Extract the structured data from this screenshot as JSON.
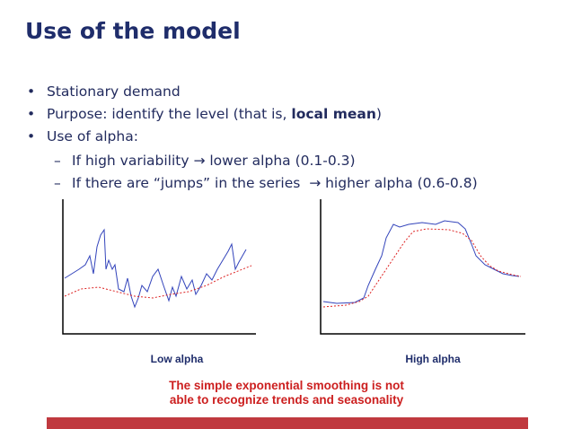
{
  "header": {
    "title": "Use of the model"
  },
  "bullets": [
    {
      "text": "Stationary demand"
    },
    {
      "parts": [
        "Purpose: identify the level (that is, ",
        "local mean",
        ")"
      ]
    },
    {
      "text": "Use of alpha:",
      "sub": [
        "If high variability → lower alpha (0.1-0.3)",
        "If there are “jumps” in the series  → higher alpha (0.6-0.8)"
      ]
    }
  ],
  "figures": [
    {
      "label": "Low alpha"
    },
    {
      "label": "High alpha"
    }
  ],
  "note": [
    "The simple exponential smoothing is not",
    "able to recognize trends and seasonality"
  ]
}
